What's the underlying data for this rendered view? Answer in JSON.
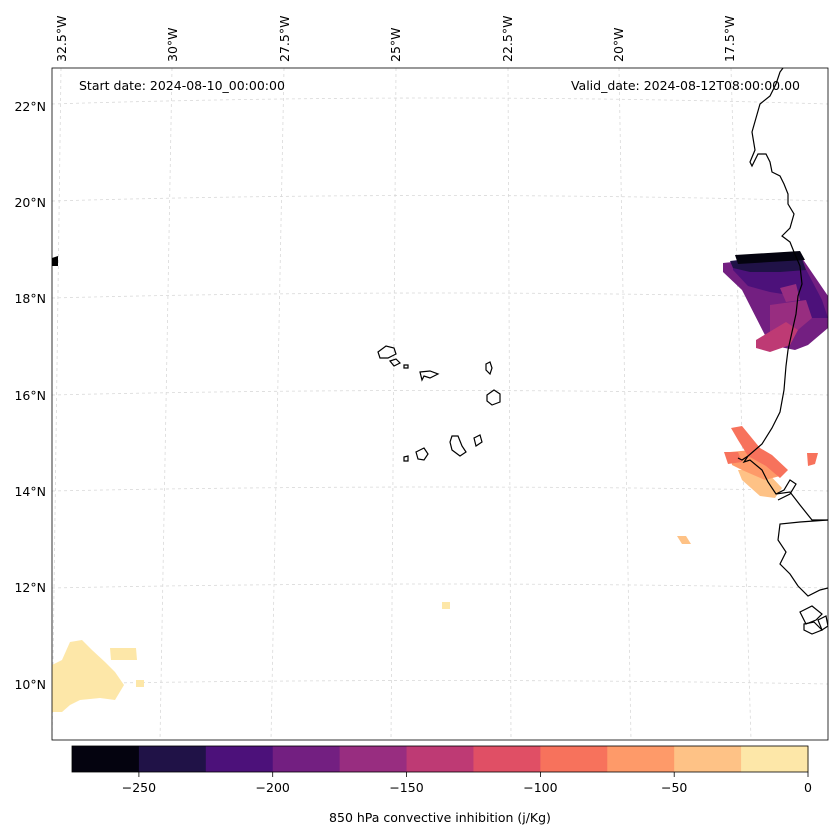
{
  "header": {
    "start_date": "Start date: 2024-08-10_00:00:00",
    "valid_date": "Valid_date: 2024-08-12T08:00:00.00"
  },
  "map": {
    "lon_labels": [
      "32.5°W",
      "30°W",
      "27.5°W",
      "25°W",
      "22.5°W",
      "20°W",
      "17.5°W"
    ],
    "lat_labels": [
      "22°N",
      "20°N",
      "18°N",
      "16°N",
      "14°N",
      "12°N",
      "10°N"
    ],
    "colors": {
      "cin_m250": "#04030f",
      "cin_m225": "#201247",
      "cin_m200": "#4c117a",
      "cin_m175": "#731f81",
      "cin_m150": "#982d80",
      "cin_m125": "#be3a74",
      "cin_m100": "#e04f65",
      "cin_m75": "#f7725c",
      "cin_m50": "#fe9a69",
      "cin_m25": "#fec286",
      "cin_0": "#fde7a8"
    }
  },
  "colorbar": {
    "label": "850 hPa convective inhibition (j/Kg)",
    "tick_labels": [
      "−250",
      "−200",
      "−150",
      "−100",
      "−50",
      "0"
    ],
    "colors": [
      "#04030f",
      "#201247",
      "#4c117a",
      "#731f81",
      "#982d80",
      "#be3a74",
      "#e04f65",
      "#f7725c",
      "#fe9a69",
      "#fec286",
      "#fde7a8"
    ]
  }
}
